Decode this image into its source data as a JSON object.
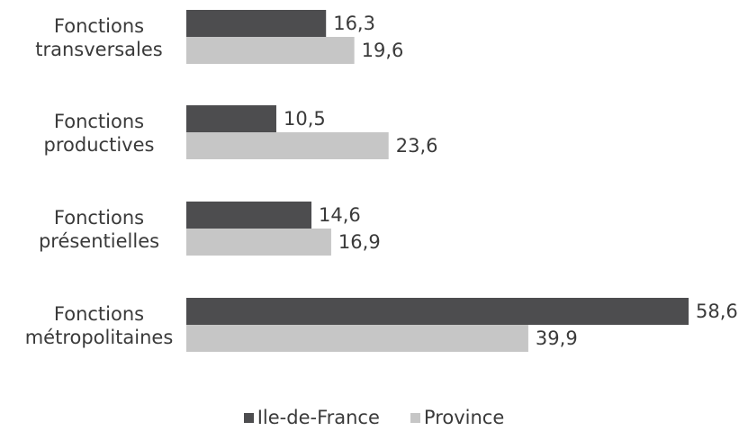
{
  "chart_data": {
    "type": "bar",
    "orientation": "horizontal",
    "categories": [
      [
        "Fonctions",
        "transversales"
      ],
      [
        "Fonctions",
        "productives"
      ],
      [
        "Fonctions",
        "présentielles"
      ],
      [
        "Fonctions",
        "métropolitaines"
      ]
    ],
    "series": [
      {
        "name": "Ile-de-France",
        "color": "#4d4d4f",
        "values": [
          16.3,
          10.5,
          14.6,
          58.6
        ],
        "labels": [
          "16,3",
          "10,5",
          "14,6",
          "58,6"
        ]
      },
      {
        "name": "Province",
        "color": "#c6c6c6",
        "values": [
          19.6,
          23.6,
          16.9,
          39.9
        ],
        "labels": [
          "19,6",
          "23,6",
          "16,9",
          "39,9"
        ]
      }
    ],
    "xlim": [
      0,
      58.6
    ],
    "grid": false,
    "legend_position": "bottom"
  }
}
